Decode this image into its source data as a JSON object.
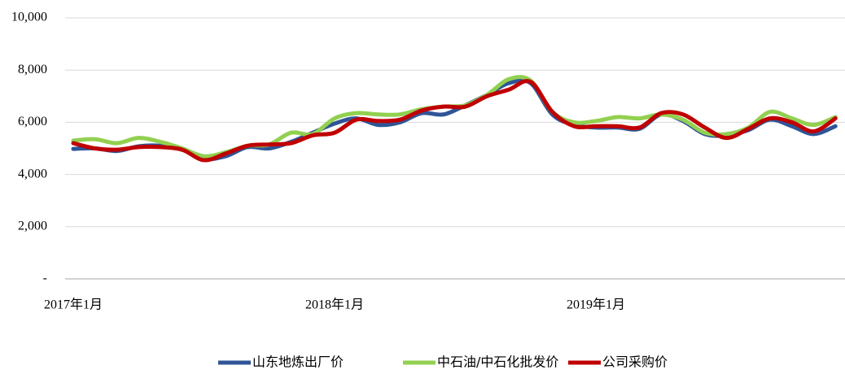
{
  "chart_data": {
    "type": "line",
    "categories": [
      "2017年1月",
      null,
      null,
      null,
      null,
      null,
      null,
      null,
      null,
      null,
      null,
      null,
      "2018年1月",
      null,
      null,
      null,
      null,
      null,
      null,
      null,
      null,
      null,
      null,
      null,
      "2019年1月",
      null,
      null,
      null,
      null,
      null,
      null,
      null,
      null,
      null,
      null,
      null
    ],
    "series": [
      {
        "name": "山东地炼出厂价",
        "color": "#2f5597",
        "values": [
          4980,
          5000,
          4900,
          5080,
          5100,
          4950,
          4600,
          4700,
          5050,
          5000,
          5250,
          5600,
          5950,
          6150,
          5900,
          6000,
          6350,
          6300,
          6650,
          7050,
          7500,
          7500,
          6300,
          5900,
          5800,
          5800,
          5750,
          6300,
          6050,
          5550,
          5500,
          5700,
          6100,
          5850,
          5550,
          5850
        ]
      },
      {
        "name": "中石油/中石化批发价",
        "color": "#92d050",
        "values": [
          5300,
          5350,
          5200,
          5400,
          5250,
          5000,
          4700,
          4850,
          5100,
          5150,
          5600,
          5550,
          6150,
          6350,
          6300,
          6300,
          6500,
          6600,
          6650,
          7050,
          7650,
          7600,
          6400,
          6000,
          6050,
          6200,
          6150,
          6300,
          6100,
          5600,
          5550,
          5800,
          6400,
          6150,
          5900,
          6200
        ]
      },
      {
        "name": "公司采购价",
        "color": "#c00000",
        "values": [
          5200,
          5000,
          4950,
          5050,
          5050,
          4950,
          4550,
          4800,
          5100,
          5150,
          5200,
          5500,
          5600,
          6100,
          6050,
          6100,
          6450,
          6600,
          6600,
          7000,
          7250,
          7550,
          6400,
          5850,
          5850,
          5850,
          5800,
          6350,
          6300,
          5800,
          5400,
          5750,
          6150,
          6000,
          5650,
          6150
        ]
      }
    ],
    "ylim": [
      0,
      10000
    ],
    "yticks": [
      {
        "value": 0,
        "label": "-"
      },
      {
        "value": 2000,
        "label": "2,000"
      },
      {
        "value": 4000,
        "label": "4,000"
      },
      {
        "value": 6000,
        "label": "6,000"
      },
      {
        "value": 8000,
        "label": "8,000"
      },
      {
        "value": 10000,
        "label": "10,000"
      }
    ],
    "grid": true
  }
}
